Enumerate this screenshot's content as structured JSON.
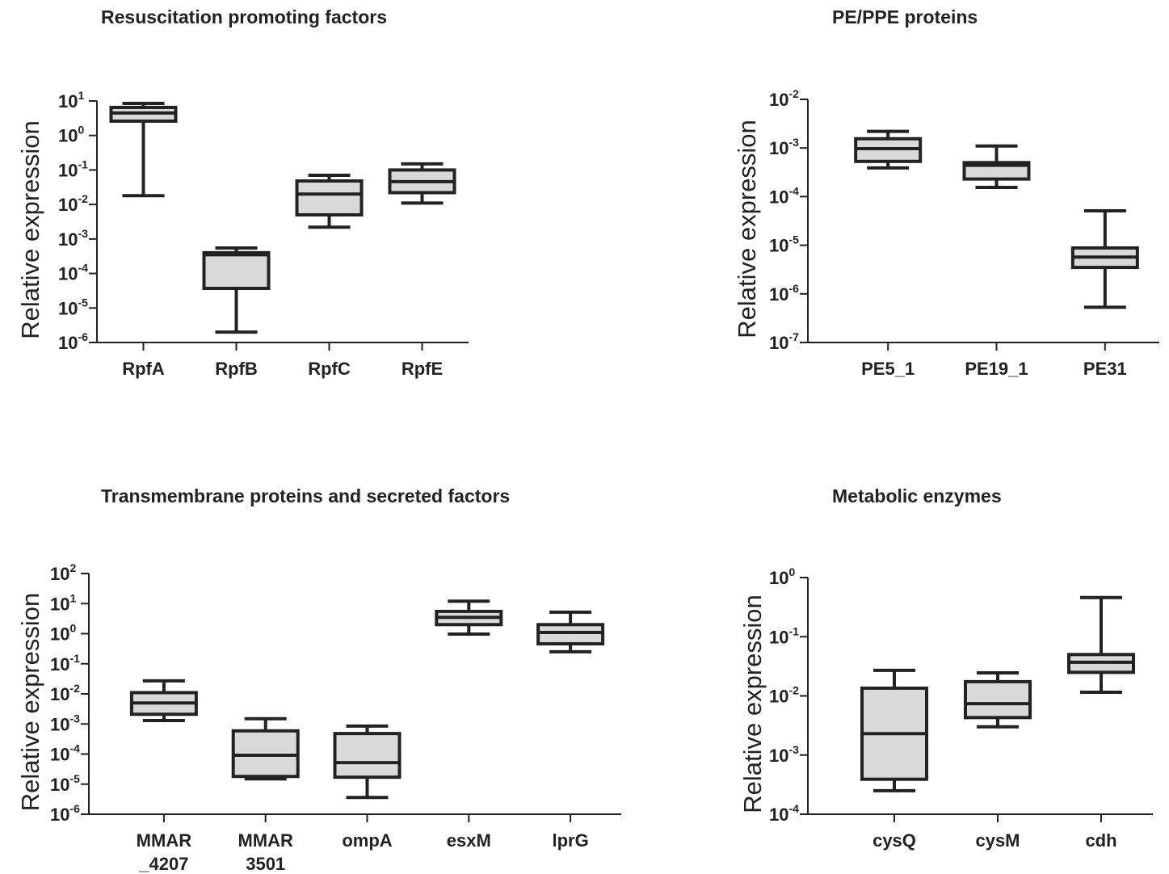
{
  "chart_data": [
    {
      "type": "box",
      "title": "Resuscitation promoting factors",
      "y_label": "Relative expression",
      "log_scale": true,
      "color": "#d9d9d9",
      "categories": [
        "RpfA",
        "RpfB",
        "RpfC",
        "RpfE"
      ],
      "boxes": [
        {
          "min": 0.018,
          "q1": 2.6,
          "median": 4.5,
          "q3": 6.5,
          "max": 8.5
        },
        {
          "min": 2e-06,
          "q1": 3.7e-05,
          "median": 0.00035,
          "q3": 0.0004,
          "max": 0.00055
        },
        {
          "min": 0.0022,
          "q1": 0.005,
          "median": 0.02,
          "q3": 0.048,
          "max": 0.07
        },
        {
          "min": 0.011,
          "q1": 0.022,
          "median": 0.046,
          "q3": 0.1,
          "max": 0.15
        }
      ],
      "ylim": [
        1e-06,
        10
      ],
      "yticks": [
        {
          "value": 1e-06,
          "label": "10",
          "exponent": "-6"
        },
        {
          "value": 1e-05,
          "label": "10",
          "exponent": "-5"
        },
        {
          "value": 0.0001,
          "label": "10",
          "exponent": "-4"
        },
        {
          "value": 0.001,
          "label": "10",
          "exponent": "-3"
        },
        {
          "value": 0.01,
          "label": "10",
          "exponent": "-2"
        },
        {
          "value": 0.1,
          "label": "10",
          "exponent": "-1"
        },
        {
          "value": 1,
          "label": "10",
          "exponent": "0"
        },
        {
          "value": 10,
          "label": "10",
          "exponent": "1"
        }
      ]
    },
    {
      "type": "box",
      "title": "PE/PPE proteins",
      "y_label": "Relative expression",
      "log_scale": true,
      "color": "#d9d9d9",
      "categories": [
        "PE5_1",
        "PE19_1",
        "PE31"
      ],
      "boxes": [
        {
          "min": 0.00039,
          "q1": 0.00053,
          "median": 0.00097,
          "q3": 0.00155,
          "max": 0.0022
        },
        {
          "min": 0.000155,
          "q1": 0.00023,
          "median": 0.00044,
          "q3": 0.0005,
          "max": 0.0011
        },
        {
          "min": 5.3e-07,
          "q1": 3.5e-06,
          "median": 5.7e-06,
          "q3": 8.8e-06,
          "max": 5.1e-05
        }
      ],
      "ylim": [
        1e-07,
        0.01
      ],
      "yticks": [
        {
          "value": 1e-07,
          "label": "10",
          "exponent": "-7"
        },
        {
          "value": 1e-06,
          "label": "10",
          "exponent": "-6"
        },
        {
          "value": 1e-05,
          "label": "10",
          "exponent": "-5"
        },
        {
          "value": 0.0001,
          "label": "10",
          "exponent": "-4"
        },
        {
          "value": 0.001,
          "label": "10",
          "exponent": "-3"
        },
        {
          "value": 0.01,
          "label": "10",
          "exponent": "-2"
        }
      ]
    },
    {
      "type": "box",
      "title": "Transmembrane proteins and secreted factors",
      "y_label": "Relative expression",
      "log_scale": true,
      "color": "#d9d9d9",
      "categories": [
        [
          "MMAR",
          "_4207"
        ],
        [
          "MMAR",
          "3501"
        ],
        "ompA",
        "esxM",
        "lprG"
      ],
      "boxes": [
        {
          "min": 0.0013,
          "q1": 0.0021,
          "median": 0.005,
          "q3": 0.011,
          "max": 0.027
        },
        {
          "min": 1.5e-05,
          "q1": 1.8e-05,
          "median": 9.1e-05,
          "q3": 0.00059,
          "max": 0.0015
        },
        {
          "min": 3.6e-06,
          "q1": 1.7e-05,
          "median": 5.2e-05,
          "q3": 0.00048,
          "max": 0.00085
        },
        {
          "min": 0.97,
          "q1": 2.0,
          "median": 3.5,
          "q3": 5.5,
          "max": 12
        },
        {
          "min": 0.25,
          "q1": 0.46,
          "median": 1.1,
          "q3": 2.0,
          "max": 5.2
        }
      ],
      "ylim": [
        1e-06,
        100
      ],
      "yticks": [
        {
          "value": 1e-06,
          "label": "10",
          "exponent": "-6"
        },
        {
          "value": 1e-05,
          "label": "10",
          "exponent": "-5"
        },
        {
          "value": 0.0001,
          "label": "10",
          "exponent": "-4"
        },
        {
          "value": 0.001,
          "label": "10",
          "exponent": "-3"
        },
        {
          "value": 0.01,
          "label": "10",
          "exponent": "-2"
        },
        {
          "value": 0.1,
          "label": "10",
          "exponent": "-1"
        },
        {
          "value": 1,
          "label": "10",
          "exponent": "0"
        },
        {
          "value": 10,
          "label": "10",
          "exponent": "1"
        },
        {
          "value": 100,
          "label": "10",
          "exponent": "2"
        }
      ]
    },
    {
      "type": "box",
      "title": "Metabolic enzymes",
      "y_label": "Relative expression",
      "log_scale": true,
      "color": "#d9d9d9",
      "categories": [
        "cysQ",
        "cysM",
        "cdh"
      ],
      "boxes": [
        {
          "min": 0.00025,
          "q1": 0.00039,
          "median": 0.0023,
          "q3": 0.0135,
          "max": 0.027
        },
        {
          "min": 0.003,
          "q1": 0.0043,
          "median": 0.0074,
          "q3": 0.0174,
          "max": 0.0245
        },
        {
          "min": 0.0115,
          "q1": 0.025,
          "median": 0.037,
          "q3": 0.05,
          "max": 0.46
        }
      ],
      "ylim": [
        0.0001,
        1
      ],
      "yticks": [
        {
          "value": 0.0001,
          "label": "10",
          "exponent": "-4"
        },
        {
          "value": 0.001,
          "label": "10",
          "exponent": "-3"
        },
        {
          "value": 0.01,
          "label": "10",
          "exponent": "-2"
        },
        {
          "value": 0.1,
          "label": "10",
          "exponent": "-1"
        },
        {
          "value": 1,
          "label": "10",
          "exponent": "0"
        }
      ]
    }
  ]
}
